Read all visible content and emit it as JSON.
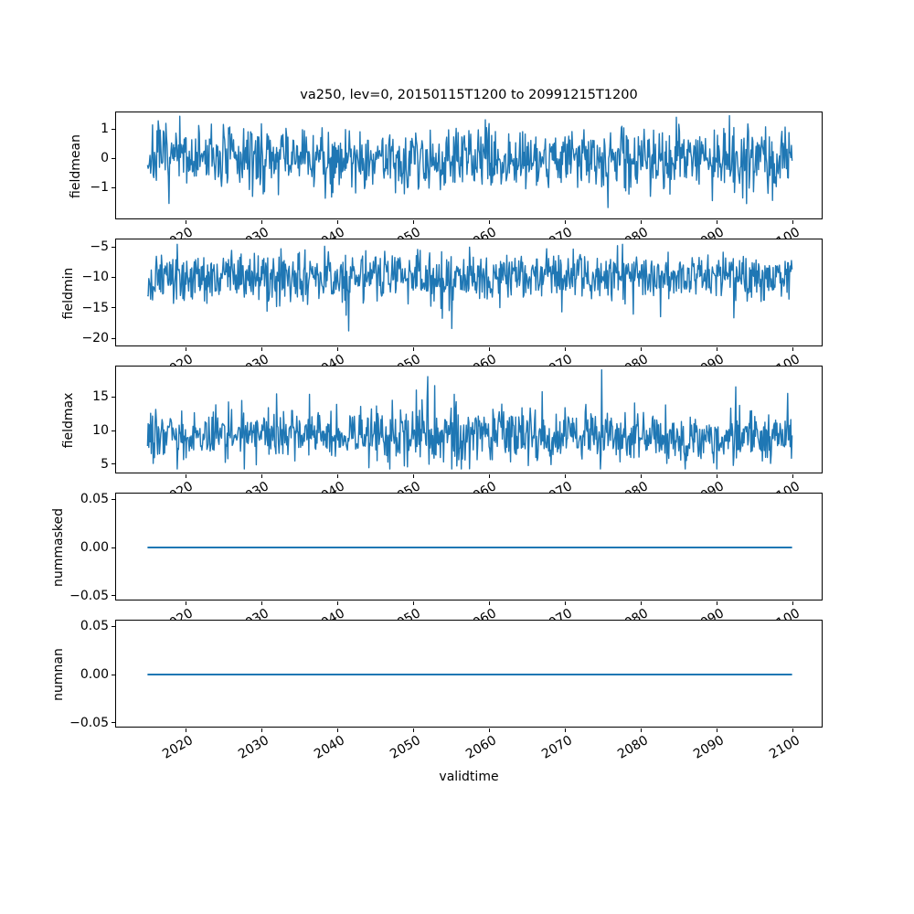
{
  "figure": {
    "title": "va250, lev=0, 20150115T1200 to 20991215T1200",
    "xlabel": "validtime",
    "background_color": "#ffffff",
    "axes_edge_color": "#000000",
    "line_color": "#1f77b4",
    "x_axis": {
      "label": "validtime",
      "lim": [
        2010.9,
        2104.1
      ],
      "ticks": [
        {
          "value": 2020,
          "label": "2020"
        },
        {
          "value": 2030,
          "label": "2030"
        },
        {
          "value": 2040,
          "label": "2040"
        },
        {
          "value": 2050,
          "label": "2050"
        },
        {
          "value": 2060,
          "label": "2060"
        },
        {
          "value": 2070,
          "label": "2070"
        },
        {
          "value": 2080,
          "label": "2080"
        },
        {
          "value": 2090,
          "label": "2090"
        },
        {
          "value": 2100,
          "label": "2100"
        }
      ],
      "tick_rotation_deg": 30,
      "data_start_year": 2015.04,
      "data_end_year": 2099.96
    }
  },
  "chart_data": [
    {
      "type": "line",
      "ylabel": "fieldmean",
      "grid": false,
      "legend": false,
      "x_start": 2015.04,
      "x_end": 2099.96,
      "n_points": 1020,
      "ylim": [
        -2.125,
        1.5625
      ],
      "yticks": [
        {
          "value": 1,
          "label": "1"
        },
        {
          "value": 0,
          "label": "0"
        },
        {
          "value": -1,
          "label": "−1"
        }
      ],
      "series": [
        {
          "name": "fieldmean",
          "color": "#1f77b4",
          "line_width": 1.4,
          "gen": {
            "kind": "noise",
            "mean": 0.0,
            "std": 0.55,
            "min": -1.75,
            "max": 1.45,
            "seed": 7,
            "spike": "none",
            "spike_prob": 0,
            "spike_mag": 0
          }
        }
      ]
    },
    {
      "type": "line",
      "ylabel": "fieldmin",
      "grid": false,
      "legend": false,
      "x_start": 2015.04,
      "x_end": 2099.96,
      "n_points": 1020,
      "ylim": [
        -21.5,
        -3.8
      ],
      "yticks": [
        {
          "value": -5,
          "label": "−5"
        },
        {
          "value": -10,
          "label": "−10"
        },
        {
          "value": -15,
          "label": "−15"
        },
        {
          "value": -20,
          "label": "−20"
        }
      ],
      "series": [
        {
          "name": "fieldmin",
          "color": "#1f77b4",
          "line_width": 1.4,
          "gen": {
            "kind": "noise",
            "mean": -9.8,
            "std": 1.9,
            "min": -20.5,
            "max": -4.6,
            "seed": 13,
            "spike": "down",
            "spike_prob": 0.03,
            "spike_mag": 6
          }
        }
      ]
    },
    {
      "type": "line",
      "ylabel": "fieldmax",
      "grid": false,
      "legend": false,
      "x_start": 2015.04,
      "x_end": 2099.96,
      "n_points": 1020,
      "ylim": [
        3.5,
        19.5
      ],
      "yticks": [
        {
          "value": 15,
          "label": "15"
        },
        {
          "value": 10,
          "label": "10"
        },
        {
          "value": 5,
          "label": "5"
        }
      ],
      "series": [
        {
          "name": "fieldmax",
          "color": "#1f77b4",
          "line_width": 1.4,
          "gen": {
            "kind": "noise",
            "mean": 9.2,
            "std": 1.9,
            "min": 4.3,
            "max": 19.0,
            "seed": 21,
            "spike": "up",
            "spike_prob": 0.04,
            "spike_mag": 6
          }
        }
      ]
    },
    {
      "type": "line",
      "ylabel": "nummasked",
      "grid": false,
      "legend": false,
      "x_start": 2015.04,
      "x_end": 2099.96,
      "n_points": 1020,
      "ylim": [
        -0.0557,
        0.0557
      ],
      "yticks": [
        {
          "value": 0.05,
          "label": "0.05"
        },
        {
          "value": 0.0,
          "label": "0.00"
        },
        {
          "value": -0.05,
          "label": "−0.05"
        }
      ],
      "series": [
        {
          "name": "nummasked",
          "color": "#1f77b4",
          "line_width": 2,
          "gen": {
            "kind": "constant",
            "value": 0.0
          }
        }
      ]
    },
    {
      "type": "line",
      "ylabel": "numnan",
      "grid": false,
      "legend": false,
      "x_start": 2015.04,
      "x_end": 2099.96,
      "n_points": 1020,
      "ylim": [
        -0.0557,
        0.0557
      ],
      "yticks": [
        {
          "value": 0.05,
          "label": "0.05"
        },
        {
          "value": 0.0,
          "label": "0.00"
        },
        {
          "value": -0.05,
          "label": "−0.05"
        }
      ],
      "series": [
        {
          "name": "numnan",
          "color": "#1f77b4",
          "line_width": 2,
          "gen": {
            "kind": "constant",
            "value": 0.0
          }
        }
      ]
    }
  ]
}
